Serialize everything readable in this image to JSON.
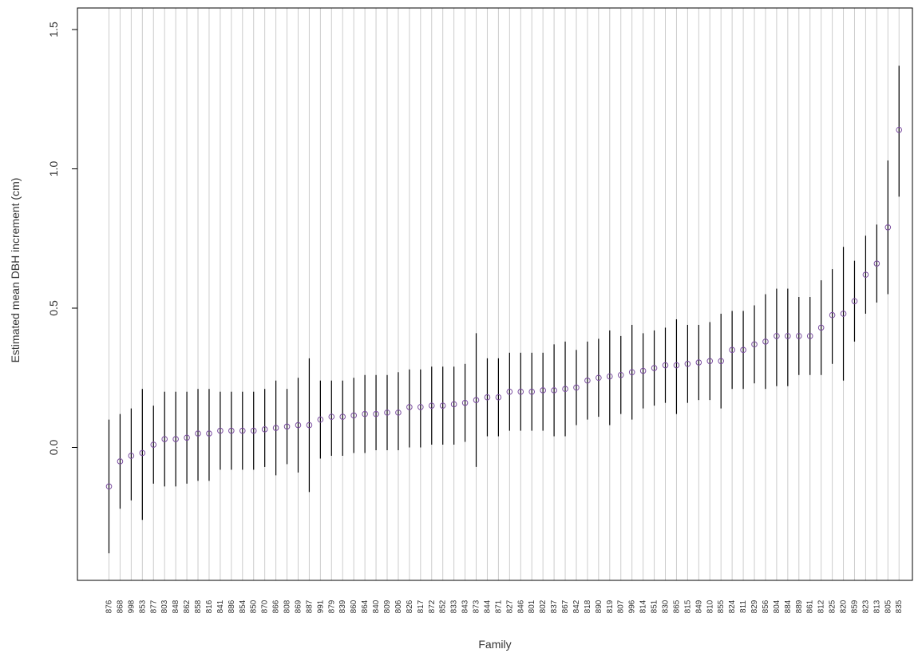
{
  "chart_data": {
    "type": "scatter",
    "title": "",
    "xlabel": "Family",
    "ylabel": "Estimated mean DBH increment (cm)",
    "ylim": [
      -0.48,
      1.58
    ],
    "yticks": [
      0.0,
      0.5,
      1.0,
      1.5
    ],
    "ytick_labels": [
      "0.0",
      "0.5",
      "1.0",
      "1.5"
    ],
    "grid": "vertical",
    "grid_color": "#cccccc",
    "point_color": "#7b4ea0",
    "errorbar_color": "#000000",
    "categories": [
      "876",
      "868",
      "998",
      "853",
      "877",
      "803",
      "848",
      "862",
      "858",
      "816",
      "841",
      "886",
      "854",
      "850",
      "870",
      "866",
      "808",
      "869",
      "887",
      "991",
      "879",
      "839",
      "860",
      "864",
      "840",
      "809",
      "806",
      "826",
      "817",
      "872",
      "852",
      "833",
      "843",
      "873",
      "844",
      "871",
      "827",
      "846",
      "801",
      "802",
      "837",
      "867",
      "842",
      "818",
      "890",
      "819",
      "807",
      "996",
      "814",
      "851",
      "830",
      "865",
      "815",
      "849",
      "810",
      "855",
      "824",
      "811",
      "829",
      "856",
      "804",
      "884",
      "889",
      "861",
      "812",
      "825",
      "820",
      "859",
      "823",
      "813",
      "805",
      "835"
    ],
    "values": [
      -0.14,
      -0.05,
      -0.03,
      -0.02,
      0.01,
      0.03,
      0.03,
      0.035,
      0.05,
      0.05,
      0.06,
      0.06,
      0.06,
      0.06,
      0.065,
      0.07,
      0.075,
      0.08,
      0.08,
      0.1,
      0.11,
      0.11,
      0.115,
      0.12,
      0.12,
      0.125,
      0.125,
      0.145,
      0.145,
      0.15,
      0.15,
      0.155,
      0.16,
      0.17,
      0.18,
      0.18,
      0.2,
      0.2,
      0.2,
      0.205,
      0.205,
      0.21,
      0.215,
      0.24,
      0.25,
      0.255,
      0.26,
      0.27,
      0.275,
      0.285,
      0.295,
      0.295,
      0.3,
      0.305,
      0.31,
      0.31,
      0.35,
      0.35,
      0.37,
      0.38,
      0.4,
      0.4,
      0.4,
      0.4,
      0.43,
      0.475,
      0.48,
      0.525,
      0.62,
      0.66,
      0.79,
      1.14
    ],
    "lower": [
      -0.38,
      -0.22,
      -0.19,
      -0.26,
      -0.13,
      -0.14,
      -0.14,
      -0.13,
      -0.12,
      -0.12,
      -0.08,
      -0.08,
      -0.08,
      -0.08,
      -0.07,
      -0.1,
      -0.06,
      -0.09,
      -0.16,
      -0.04,
      -0.03,
      -0.03,
      -0.02,
      -0.02,
      -0.01,
      -0.01,
      -0.01,
      0.0,
      0.0,
      0.01,
      0.01,
      0.01,
      0.02,
      -0.07,
      0.04,
      0.04,
      0.06,
      0.06,
      0.06,
      0.06,
      0.04,
      0.04,
      0.08,
      0.1,
      0.11,
      0.08,
      0.12,
      0.1,
      0.14,
      0.15,
      0.16,
      0.12,
      0.16,
      0.17,
      0.17,
      0.14,
      0.21,
      0.21,
      0.23,
      0.21,
      0.22,
      0.22,
      0.26,
      0.26,
      0.26,
      0.3,
      0.24,
      0.38,
      0.48,
      0.52,
      0.55,
      0.9
    ],
    "upper": [
      0.1,
      0.12,
      0.14,
      0.21,
      0.15,
      0.2,
      0.2,
      0.2,
      0.21,
      0.21,
      0.2,
      0.2,
      0.2,
      0.2,
      0.21,
      0.24,
      0.21,
      0.25,
      0.32,
      0.24,
      0.24,
      0.24,
      0.25,
      0.26,
      0.26,
      0.26,
      0.27,
      0.28,
      0.28,
      0.29,
      0.29,
      0.29,
      0.3,
      0.41,
      0.32,
      0.32,
      0.34,
      0.34,
      0.34,
      0.34,
      0.37,
      0.38,
      0.35,
      0.38,
      0.39,
      0.42,
      0.4,
      0.44,
      0.41,
      0.42,
      0.43,
      0.46,
      0.44,
      0.44,
      0.45,
      0.48,
      0.49,
      0.49,
      0.51,
      0.55,
      0.57,
      0.57,
      0.54,
      0.54,
      0.6,
      0.64,
      0.72,
      0.67,
      0.76,
      0.8,
      1.03,
      1.37
    ]
  }
}
